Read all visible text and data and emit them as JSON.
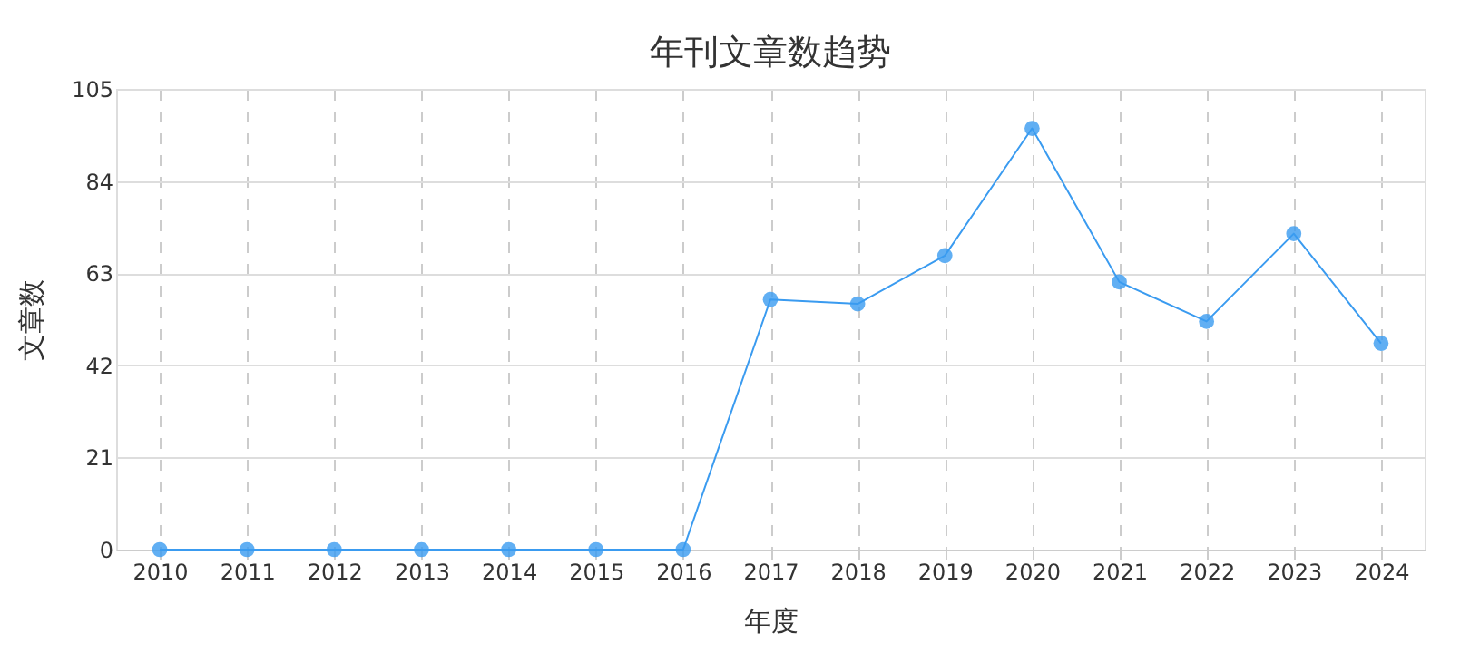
{
  "chart_data": {
    "type": "line",
    "title": "年刊文章数趋势",
    "xlabel": "年度",
    "ylabel": "文章数",
    "categories": [
      "2010",
      "2011",
      "2012",
      "2013",
      "2014",
      "2015",
      "2016",
      "2017",
      "2018",
      "2019",
      "2020",
      "2021",
      "2022",
      "2023",
      "2024"
    ],
    "series": [
      {
        "color": "#3a9bf0",
        "values": [
          0,
          0,
          0,
          0,
          0,
          0,
          0,
          57,
          56,
          67,
          96,
          61,
          52,
          72,
          47
        ]
      }
    ],
    "ylim": [
      0,
      105
    ],
    "yticks": [
      0,
      21,
      42,
      63,
      84,
      105
    ],
    "grid": true,
    "marker": "circle",
    "line_style": "solid"
  }
}
